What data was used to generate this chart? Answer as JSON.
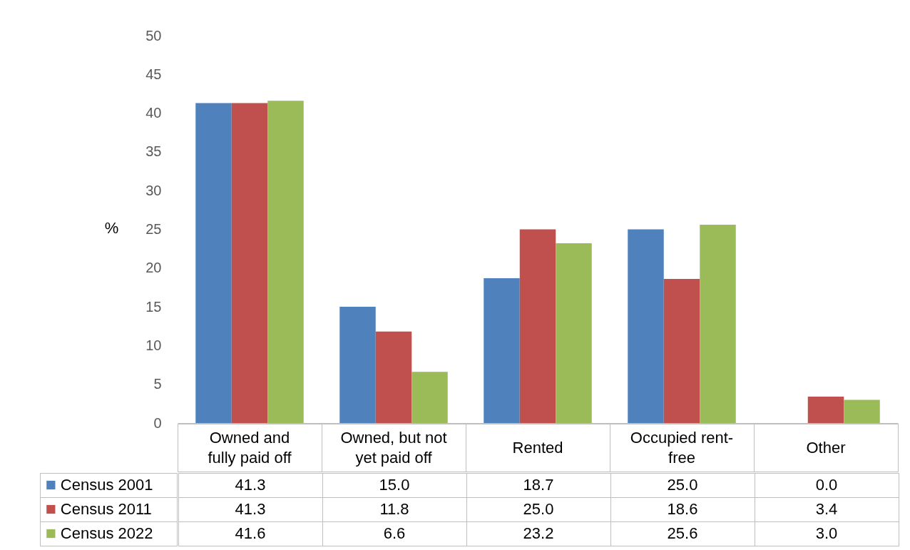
{
  "chart_data": {
    "type": "bar",
    "ylabel": "%",
    "categories": [
      "Owned and fully paid off",
      "Owned, but not yet paid off",
      "Rented",
      "Occupied rent-free",
      "Other"
    ],
    "series": [
      {
        "name": "Census 2001",
        "color": "#4f81bd",
        "values": [
          41.3,
          15.0,
          18.7,
          25.0,
          0.0
        ],
        "value_labels": [
          "41.3",
          "15.0",
          "18.7",
          "25.0",
          "0.0"
        ]
      },
      {
        "name": "Census 2011",
        "color": "#c0504d",
        "values": [
          41.3,
          11.8,
          25.0,
          18.6,
          3.4
        ],
        "value_labels": [
          "41.3",
          "11.8",
          "25.0",
          "18.6",
          "3.4"
        ]
      },
      {
        "name": "Census 2022",
        "color": "#9bbb59",
        "values": [
          41.6,
          6.6,
          23.2,
          25.6,
          3.0
        ],
        "value_labels": [
          "41.6",
          "6.6",
          "23.2",
          "25.6",
          "3.0"
        ]
      }
    ],
    "ylim": [
      0,
      50
    ],
    "yticks": [
      0,
      5,
      10,
      15,
      20,
      25,
      30,
      35,
      40,
      45,
      50
    ],
    "grid": false,
    "legend": "bottom"
  }
}
